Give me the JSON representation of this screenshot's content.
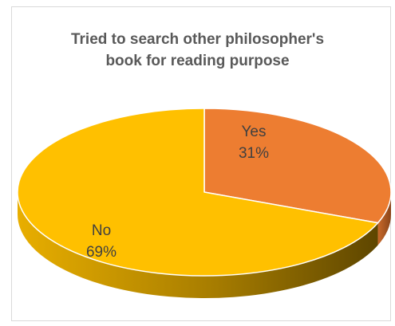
{
  "chart_data": {
    "type": "pie",
    "title_lines": [
      "Tried to search other philosopher's",
      "book for reading purpose"
    ],
    "slices": [
      {
        "label": "Yes",
        "percent_label": "31%",
        "value": 31,
        "color": "#ED7D31",
        "side_color": "#B15D24"
      },
      {
        "label": "No",
        "percent_label": "69%",
        "value": 69,
        "color": "#FFC000",
        "side_color": "#BF9000"
      }
    ],
    "style": "3d",
    "legend": "none",
    "data_labels": "inside"
  }
}
